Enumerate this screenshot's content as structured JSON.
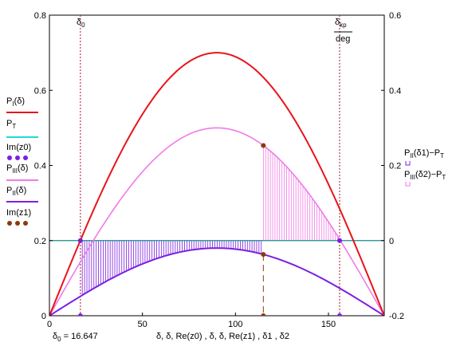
{
  "chart_data": {
    "type": "line",
    "x_range": [
      0,
      180
    ],
    "y_left_range": [
      0,
      0.8
    ],
    "y_right_range": [
      -0.2,
      0.6
    ],
    "x_ticks": [
      "0",
      "50",
      "100",
      "150"
    ],
    "y_left_ticks": [
      "0",
      "0.2",
      "0.4",
      "0.6",
      "0.8"
    ],
    "y_right_ticks": [
      "-0.2",
      "0",
      "0.2",
      "0.4",
      "0.6"
    ],
    "x_tick_values": [
      0,
      50,
      100,
      150
    ],
    "y_left_tick_values": [
      0,
      0.2,
      0.4,
      0.6,
      0.8
    ],
    "y_right_tick_values": [
      -0.2,
      0,
      0.2,
      0.4,
      0.6
    ],
    "x_axis_title": "δ, δ, Re(z0) , δ, δ, Re(z1) , δ1 , δ2",
    "x_readout": "δ₀ = 16.647",
    "top_labels": {
      "d0": "δ₀",
      "dkp_num": "δkp",
      "dkp_den": "deg"
    },
    "d0": 16.647,
    "dkp": 156,
    "z1_x": 115,
    "pt": 0.2,
    "series": [
      {
        "key": "p1",
        "label": "PI(δ)",
        "color": "#e8141a",
        "amplitude": 0.7
      },
      {
        "key": "pt",
        "label": "PT",
        "color": "#1fd8d8"
      },
      {
        "key": "z0",
        "label": "Im(z0)",
        "color": "#7b1fe0"
      },
      {
        "key": "p3",
        "label": "PIII(δ)",
        "color": "#f07ae6",
        "amplitude": 0.5
      },
      {
        "key": "p2",
        "label": "PII(δ)",
        "color": "#7b1fe0",
        "amplitude": 0.18
      },
      {
        "key": "z1",
        "label": "Im(z1)",
        "color": "#8b3a0e"
      }
    ],
    "right_series": [
      {
        "key": "area2",
        "label": "PII(δ1)−PT",
        "color": "#7b1fe0"
      },
      {
        "key": "area3",
        "label": "PIII(δ2)−PT",
        "color": "#f07ae6"
      }
    ]
  }
}
